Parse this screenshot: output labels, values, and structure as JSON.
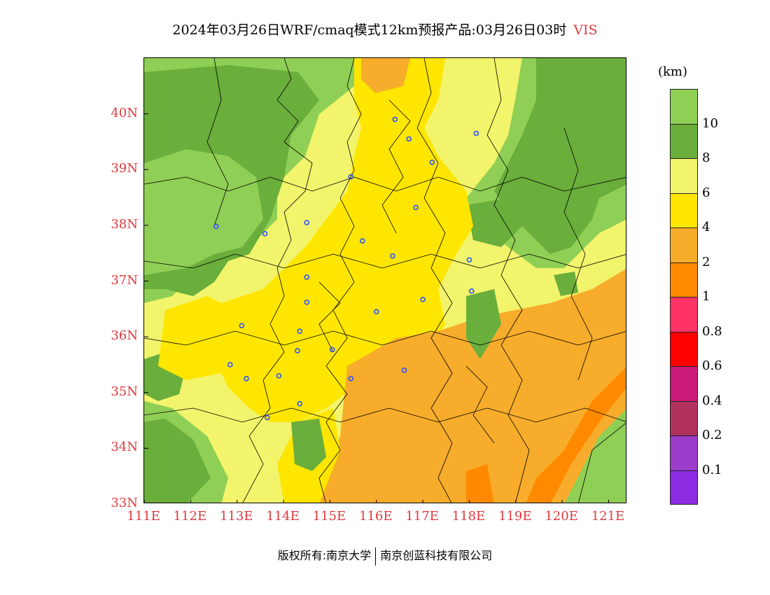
{
  "title": {
    "text": "2024年03月26日WRF/cmaq模式12km预报产品:03月26日03时",
    "variable": "VIS"
  },
  "map": {
    "lat_labels": [
      "40N",
      "39N",
      "38N",
      "37N",
      "36N",
      "35N",
      "34N",
      "33N"
    ],
    "lon_labels": [
      "111E",
      "112E",
      "113E",
      "114E",
      "115E",
      "116E",
      "117E",
      "118E",
      "119E",
      "120E",
      "121E"
    ],
    "lon_range": [
      111,
      121.4
    ],
    "lat_range": [
      33,
      41
    ],
    "colors": {
      "vis_gt10": "#8fcf55",
      "vis_8_10": "#6aae3c",
      "vis_6_8": "#f2f46b",
      "vis_4_6": "#ffe600",
      "vis_2_4": "#f7ad2b",
      "vis_1_2": "#ff8a00",
      "city_marker": "#2b53ff",
      "boundary": "#000000"
    },
    "cities": [
      {
        "lon": 116.4,
        "lat": 39.9
      },
      {
        "lon": 116.7,
        "lat": 39.55
      },
      {
        "lon": 117.2,
        "lat": 39.13
      },
      {
        "lon": 118.15,
        "lat": 39.65
      },
      {
        "lon": 115.45,
        "lat": 38.87
      },
      {
        "lon": 116.85,
        "lat": 38.32
      },
      {
        "lon": 114.5,
        "lat": 38.05
      },
      {
        "lon": 112.55,
        "lat": 37.98
      },
      {
        "lon": 113.6,
        "lat": 37.85
      },
      {
        "lon": 115.7,
        "lat": 37.72
      },
      {
        "lon": 116.35,
        "lat": 37.45
      },
      {
        "lon": 118.0,
        "lat": 37.38
      },
      {
        "lon": 114.5,
        "lat": 37.07
      },
      {
        "lon": 118.05,
        "lat": 36.82
      },
      {
        "lon": 117.0,
        "lat": 36.67
      },
      {
        "lon": 114.5,
        "lat": 36.62
      },
      {
        "lon": 116.0,
        "lat": 36.45
      },
      {
        "lon": 113.1,
        "lat": 36.2
      },
      {
        "lon": 114.35,
        "lat": 36.1
      },
      {
        "lon": 114.3,
        "lat": 35.75
      },
      {
        "lon": 115.05,
        "lat": 35.77
      },
      {
        "lon": 112.85,
        "lat": 35.5
      },
      {
        "lon": 116.6,
        "lat": 35.4
      },
      {
        "lon": 113.9,
        "lat": 35.3
      },
      {
        "lon": 113.2,
        "lat": 35.25
      },
      {
        "lon": 115.45,
        "lat": 35.25
      },
      {
        "lon": 114.35,
        "lat": 34.8
      },
      {
        "lon": 113.65,
        "lat": 34.55
      }
    ]
  },
  "legend": {
    "unit": "(km)",
    "colors": [
      "#8fcf55",
      "#6aae3c",
      "#f2f46b",
      "#ffe600",
      "#f7ad2b",
      "#ff8a00",
      "#ff3366",
      "#ff0000",
      "#cc1a7a",
      "#b0305e",
      "#9c3ccc",
      "#8b2be2"
    ],
    "ticks": [
      "10",
      "8",
      "6",
      "4",
      "2",
      "1",
      "0.8",
      "0.6",
      "0.4",
      "0.2",
      "0.1"
    ]
  },
  "footer": {
    "copyright": "版权所有:南京大学",
    "company": "南京创蓝科技有限公司"
  }
}
